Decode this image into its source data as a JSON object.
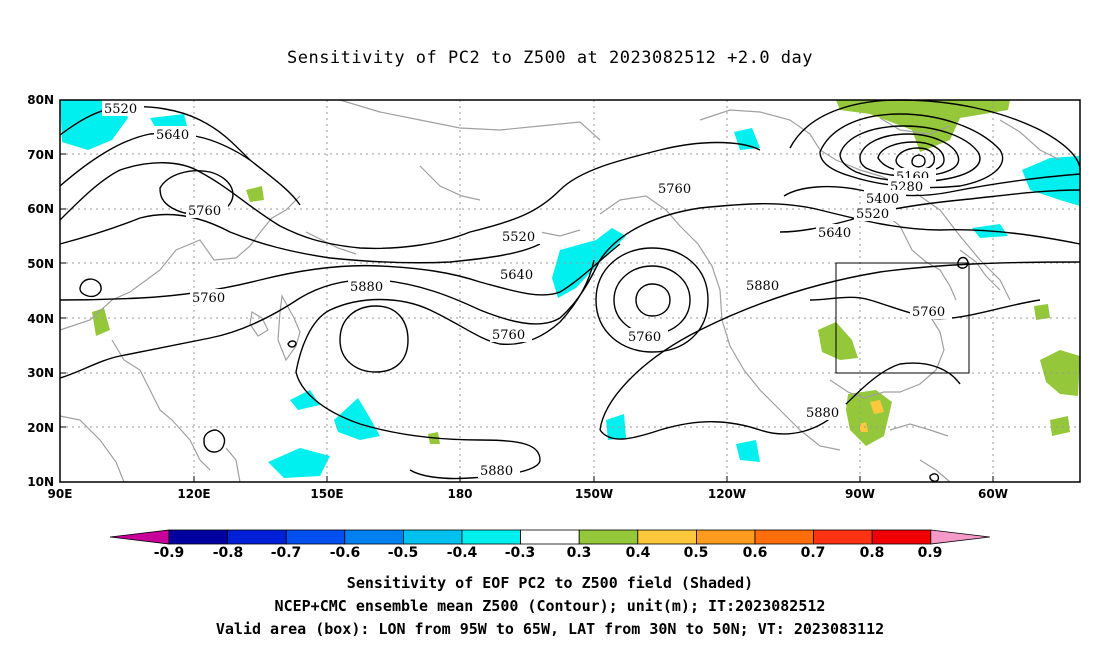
{
  "title": "Sensitivity of PC2 to Z500 at 2023082512 +2.0 day",
  "lat_labels": [
    "80N",
    "70N",
    "60N",
    "50N",
    "40N",
    "30N",
    "20N",
    "10N"
  ],
  "lon_labels": [
    "90E",
    "120E",
    "150E",
    "180",
    "150W",
    "120W",
    "90W",
    "60W"
  ],
  "contour_labels": [
    {
      "text": "5520"
    },
    {
      "text": "5640"
    },
    {
      "text": "5760"
    },
    {
      "text": "5760"
    },
    {
      "text": "5880"
    },
    {
      "text": "5520"
    },
    {
      "text": "5640"
    },
    {
      "text": "5760"
    },
    {
      "text": "5760"
    },
    {
      "text": "5760"
    },
    {
      "text": "5880"
    },
    {
      "text": "5880"
    },
    {
      "text": "5880"
    },
    {
      "text": "5160"
    },
    {
      "text": "5280"
    },
    {
      "text": "5400"
    },
    {
      "text": "5520"
    },
    {
      "text": "5640"
    },
    {
      "text": "5760"
    }
  ],
  "colorbar": {
    "colors": [
      "#c8009a",
      "#0000a0",
      "#0020d8",
      "#0050f0",
      "#0080f0",
      "#00c0f0",
      "#00f0f0",
      "#ffffff",
      "#94c83a",
      "#ffc83c",
      "#ff9b1e",
      "#ff6e0a",
      "#ff3214",
      "#f00000",
      "#f59ac8"
    ],
    "labels": [
      "-0.9",
      "-0.8",
      "-0.7",
      "-0.6",
      "-0.5",
      "-0.4",
      "-0.3",
      "0.3",
      "0.4",
      "0.5",
      "0.6",
      "0.7",
      "0.8",
      "0.9"
    ]
  },
  "captions": [
    "Sensitivity of EOF PC2 to Z500 field (Shaded)",
    "NCEP+CMC ensemble mean Z500 (Contour); unit(m); IT:2023082512",
    "Valid area (box): LON from 95W to 65W, LAT from 30N to 50N; VT: 2023083112"
  ],
  "colors": {
    "negative_shade": "#00f0f0",
    "positive_shade": "#94c83a",
    "positive_strong": "#ffc83c",
    "contour": "#000000",
    "coastline": "#a0a0a0"
  }
}
